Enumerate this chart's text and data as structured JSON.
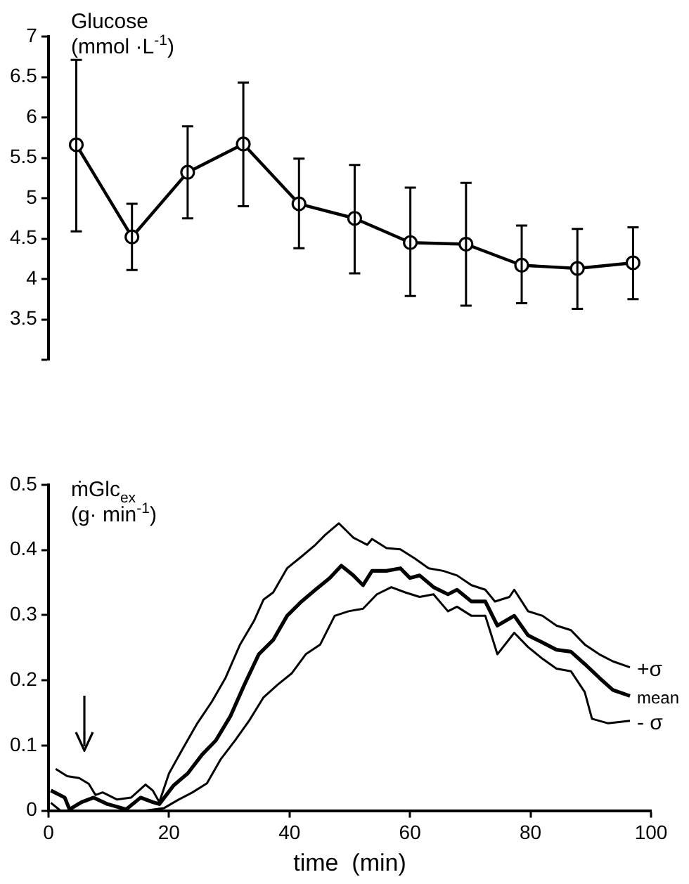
{
  "chart_data": [
    {
      "type": "line",
      "ylabel": "Glucose\n(mmol ·L$^{-1}$)",
      "categories": [
        null,
        null,
        null,
        null,
        null,
        null,
        null,
        null,
        null,
        null,
        null
      ],
      "ylim": [
        3,
        7
      ],
      "yticks": [
        {
          "value": 3,
          "label": null
        },
        3.5,
        4,
        4.5,
        5,
        5.5,
        6,
        6.5,
        7
      ],
      "tick_labels": "y",
      "grid": false,
      "legend": false,
      "marker": "circle",
      "line_style": "solid",
      "series": [
        {
          "color": "#000000",
          "values": [
            5.66,
            4.52,
            5.32,
            5.67,
            4.93,
            4.75,
            4.45,
            4.43,
            4.17,
            4.13,
            4.2
          ],
          "errors": [
            [
              4.59,
              6.71
            ],
            [
              4.11,
              4.93
            ],
            [
              4.75,
              5.89
            ],
            [
              4.9,
              6.43
            ],
            [
              4.38,
              5.49
            ],
            [
              4.07,
              5.41
            ],
            [
              3.79,
              5.13
            ],
            [
              3.67,
              5.19
            ],
            [
              3.7,
              4.66
            ],
            [
              3.63,
              4.62
            ],
            [
              3.75,
              4.64
            ]
          ]
        }
      ]
    },
    {
      "type": "line",
      "ylabel": "ṁGlc$_{ex}$\n(g· min$^{-1}$)",
      "xlabel": "time  (min)",
      "xlim": [
        0,
        100
      ],
      "xticks": [
        0,
        20,
        40,
        60,
        80,
        100
      ],
      "ylim": [
        0,
        0.5
      ],
      "yticks": [
        0,
        0.1,
        0.2,
        0.3,
        0.4,
        0.5
      ],
      "grid": false,
      "legend": false,
      "marker": "none",
      "line_style": "solid",
      "series": [
        {
          "name": "+σ",
          "color": "#000000",
          "x": [
            1.2,
            3.1,
            5.1,
            6.7,
            7.8,
            9,
            11.4,
            13.7,
            16.1,
            17.3,
            18.4,
            20,
            22.4,
            24.7,
            27.1,
            29.4,
            31.8,
            34.1,
            35.7,
            37.3,
            39.6,
            42,
            44.3,
            45.9,
            48.2,
            50.6,
            52.9,
            53.7,
            56.1,
            58.4,
            60.8,
            63.1,
            65.5,
            67.8,
            70.2,
            72.5,
            74.1,
            76.5,
            77.3,
            79.6,
            82,
            84.3,
            86.7,
            89,
            91.4,
            93.7,
            96.5
          ],
          "values": [
            0.064,
            0.053,
            0.05,
            0.041,
            0.024,
            0.028,
            0.017,
            0.02,
            0.04,
            0.031,
            0.013,
            0.057,
            0.097,
            0.134,
            0.167,
            0.204,
            0.255,
            0.291,
            0.324,
            0.335,
            0.372,
            0.39,
            0.408,
            0.423,
            0.441,
            0.419,
            0.408,
            0.417,
            0.403,
            0.401,
            0.387,
            0.372,
            0.368,
            0.361,
            0.346,
            0.339,
            0.321,
            0.328,
            0.339,
            0.306,
            0.299,
            0.284,
            0.277,
            0.255,
            0.24,
            0.229,
            0.22
          ]
        },
        {
          "name": "mean",
          "color": "#000000",
          "x": [
            0.4,
            2.7,
            3.5,
            5.5,
            7.5,
            9.8,
            12.9,
            15.3,
            17.3,
            18.4,
            20.8,
            23.1,
            25.5,
            27.8,
            30.2,
            32.5,
            34.9,
            37.3,
            39.6,
            42,
            44.3,
            46.7,
            48.6,
            50.6,
            52.2,
            53.7,
            56.1,
            58.4,
            60,
            61.6,
            63.9,
            66.3,
            67.8,
            70.2,
            72.5,
            74.5,
            77.3,
            79.6,
            82,
            84.3,
            86.7,
            89,
            91.4,
            93.7,
            96.5
          ],
          "values": [
            0.031,
            0.02,
            0.002,
            0.013,
            0.02,
            0.01,
            0.002,
            0.02,
            0.013,
            0.01,
            0.039,
            0.057,
            0.086,
            0.108,
            0.145,
            0.193,
            0.24,
            0.262,
            0.299,
            0.321,
            0.339,
            0.357,
            0.376,
            0.361,
            0.346,
            0.368,
            0.368,
            0.372,
            0.357,
            0.361,
            0.343,
            0.332,
            0.339,
            0.321,
            0.321,
            0.284,
            0.299,
            0.269,
            0.258,
            0.247,
            0.244,
            0.225,
            0.204,
            0.185,
            0.176
          ]
        },
        {
          "name": "- σ",
          "color": "#000000",
          "x": [
            0.4,
            2,
            6.7,
            11.4,
            16.1,
            19.2,
            21.6,
            23.9,
            26.3,
            28.6,
            31,
            33.3,
            35.7,
            38,
            40.4,
            42.7,
            45.1,
            47.5,
            49.8,
            52.2,
            54.5,
            56.9,
            59.2,
            61.6,
            63.9,
            66.3,
            67.8,
            70.2,
            72.5,
            74.5,
            77.3,
            79.6,
            82,
            84.3,
            86.7,
            89,
            90.2,
            92.9,
            96.5
          ],
          "values": [
            0.012,
            0,
            0,
            0,
            0,
            0.004,
            0.017,
            0.028,
            0.042,
            0.079,
            0.108,
            0.138,
            0.174,
            0.193,
            0.211,
            0.24,
            0.255,
            0.299,
            0.306,
            0.31,
            0.332,
            0.343,
            0.335,
            0.328,
            0.332,
            0.306,
            0.313,
            0.299,
            0.299,
            0.24,
            0.273,
            0.251,
            0.233,
            0.218,
            0.214,
            0.182,
            0.141,
            0.134,
            0.138
          ]
        }
      ]
    }
  ]
}
